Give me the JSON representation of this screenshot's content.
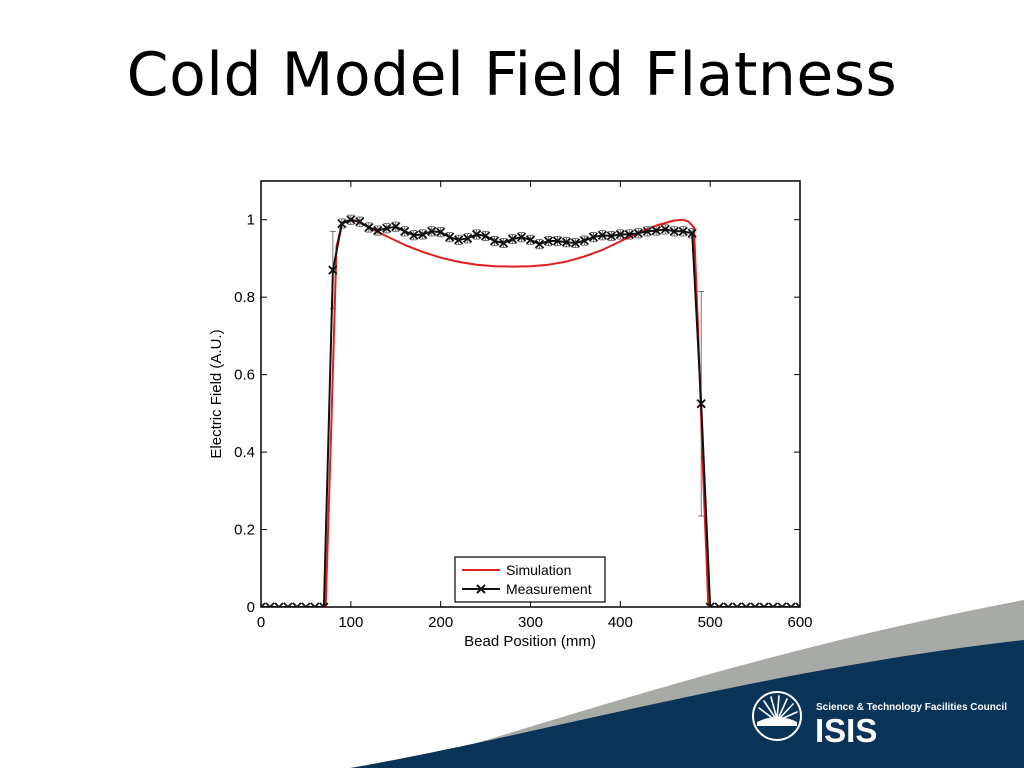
{
  "slide": {
    "title": "Cold Model Field Flatness"
  },
  "brand": {
    "council": "Science & Technology Facilities Council",
    "name": "ISIS",
    "colors": {
      "navy": "#0a3358",
      "gray": "#a7aaa5",
      "white": "#ffffff"
    }
  },
  "chart_data": {
    "type": "line",
    "xlabel": "Bead Position (mm)",
    "ylabel": "Electric Field (A.U.)",
    "xlim": [
      0,
      600
    ],
    "ylim": [
      0,
      1.1
    ],
    "xticks": [
      "0",
      "100",
      "200",
      "300",
      "400",
      "500",
      "600"
    ],
    "yticks": [
      "0",
      "0.2",
      "0.4",
      "0.6",
      "0.8",
      "1"
    ],
    "legend_position": "bottom-center",
    "series": [
      {
        "name": "Simulation",
        "color": "#e0201c",
        "marker": "none",
        "x": [
          0,
          72,
          78,
          84,
          90,
          100,
          110,
          120,
          140,
          160,
          180,
          200,
          220,
          240,
          260,
          280,
          300,
          320,
          340,
          360,
          380,
          400,
          420,
          440,
          460,
          470,
          476,
          482,
          486,
          492,
          498,
          600
        ],
        "y": [
          0,
          0,
          0.45,
          0.93,
          0.99,
          1.0,
          0.993,
          0.98,
          0.957,
          0.935,
          0.917,
          0.902,
          0.891,
          0.884,
          0.88,
          0.879,
          0.88,
          0.884,
          0.892,
          0.905,
          0.922,
          0.944,
          0.966,
          0.985,
          0.998,
          1.0,
          0.995,
          0.98,
          0.75,
          0.35,
          0,
          0
        ]
      },
      {
        "name": "Measurement",
        "color": "#111111",
        "marker": "x",
        "x": [
          0,
          10,
          20,
          30,
          40,
          50,
          60,
          70,
          80,
          90,
          100,
          110,
          120,
          130,
          140,
          150,
          160,
          170,
          180,
          190,
          200,
          210,
          220,
          230,
          240,
          250,
          260,
          270,
          280,
          290,
          300,
          310,
          320,
          330,
          340,
          350,
          360,
          370,
          380,
          390,
          400,
          410,
          420,
          430,
          440,
          450,
          460,
          470,
          480,
          490,
          500,
          510,
          520,
          530,
          540,
          550,
          560,
          570,
          580,
          590,
          600
        ],
        "y": [
          0,
          0,
          0,
          0,
          0,
          0,
          0,
          0,
          0.87,
          0.99,
          1.0,
          0.995,
          0.98,
          0.972,
          0.978,
          0.982,
          0.97,
          0.96,
          0.962,
          0.97,
          0.968,
          0.955,
          0.948,
          0.952,
          0.962,
          0.958,
          0.945,
          0.94,
          0.95,
          0.955,
          0.948,
          0.937,
          0.945,
          0.945,
          0.942,
          0.94,
          0.946,
          0.955,
          0.96,
          0.958,
          0.962,
          0.962,
          0.965,
          0.97,
          0.972,
          0.975,
          0.97,
          0.97,
          0.965,
          0.525,
          0,
          0,
          0,
          0,
          0,
          0,
          0,
          0,
          0,
          0,
          0
        ]
      }
    ]
  }
}
